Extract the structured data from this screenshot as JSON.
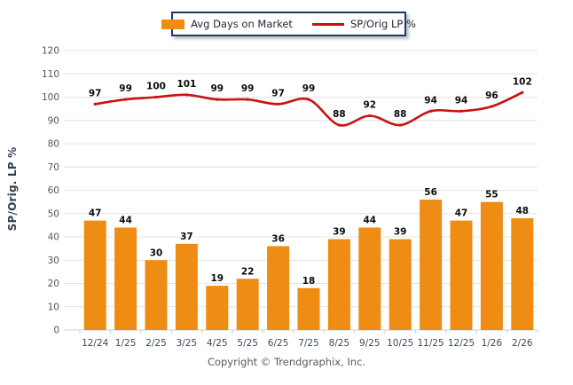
{
  "legend": {
    "bar_label": "Avg Days on Market",
    "line_label": "SP/Orig LP %"
  },
  "y_axis_title": "SP/Orig. LP %",
  "footer": {
    "copyright": "Copyright © Trendgraphix, Inc."
  },
  "colors": {
    "bar": "#EF8C13",
    "line": "#C91212",
    "grid": "#E4E4E4",
    "axis": "#CFCFCF",
    "tick_text": "#4A5866",
    "x_text": "#3D4C5C",
    "value_label": "#0B0B0B",
    "legend_border": "#1B3A66",
    "y_title": "#2F3F4F",
    "copyright_text": "#5A5A5A"
  },
  "chart_data": {
    "type": "combo",
    "categories": [
      "12/24",
      "1/25",
      "2/25",
      "3/25",
      "4/25",
      "5/25",
      "6/25",
      "7/25",
      "8/25",
      "9/25",
      "10/25",
      "11/25",
      "12/25",
      "1/26",
      "2/26"
    ],
    "series": [
      {
        "name": "Avg Days on Market",
        "type": "bar",
        "color": "#EF8C13",
        "values": [
          47,
          44,
          30,
          37,
          19,
          22,
          36,
          18,
          39,
          44,
          39,
          56,
          47,
          55,
          48
        ]
      },
      {
        "name": "SP/Orig LP %",
        "type": "line",
        "color": "#C91212",
        "values": [
          97,
          99,
          100,
          101,
          99,
          99,
          97,
          99,
          88,
          92,
          88,
          94,
          94,
          96,
          102
        ]
      }
    ],
    "title": "",
    "xlabel": "",
    "ylabel": "SP/Orig. LP %",
    "ylim": [
      0,
      120
    ],
    "yticks": [
      0,
      10,
      20,
      30,
      40,
      50,
      60,
      70,
      80,
      90,
      100,
      110,
      120
    ],
    "grid": "horizontal",
    "legend_position": "top-center",
    "data_labels": true
  }
}
